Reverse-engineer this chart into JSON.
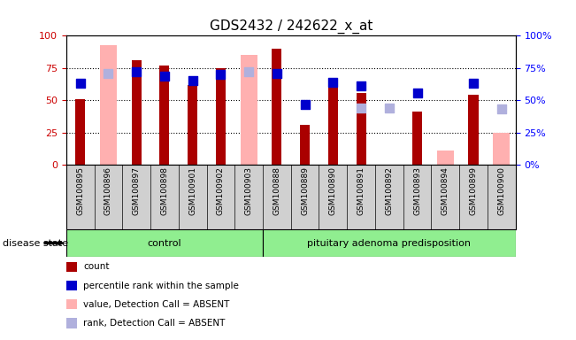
{
  "title": "GDS2432 / 242622_x_at",
  "samples": [
    "GSM100895",
    "GSM100896",
    "GSM100897",
    "GSM100898",
    "GSM100901",
    "GSM100902",
    "GSM100903",
    "GSM100888",
    "GSM100889",
    "GSM100890",
    "GSM100891",
    "GSM100892",
    "GSM100893",
    "GSM100894",
    "GSM100899",
    "GSM100900"
  ],
  "groups": [
    {
      "label": "control",
      "start": 0,
      "end": 7
    },
    {
      "label": "pituitary adenoma predisposition",
      "start": 7,
      "end": 16
    }
  ],
  "count": [
    51,
    null,
    81,
    77,
    62,
    75,
    null,
    90,
    31,
    60,
    56,
    null,
    41,
    null,
    54,
    null
  ],
  "percentile_rank": [
    63,
    null,
    72,
    69,
    65,
    70,
    null,
    71,
    47,
    64,
    61,
    null,
    56,
    null,
    63,
    null
  ],
  "value_absent": [
    null,
    93,
    null,
    null,
    null,
    null,
    85,
    null,
    null,
    null,
    null,
    null,
    null,
    11,
    null,
    25
  ],
  "rank_absent": [
    null,
    71,
    null,
    null,
    null,
    null,
    72,
    null,
    null,
    null,
    44,
    44,
    null,
    null,
    null,
    43
  ],
  "ylim": [
    0,
    100
  ],
  "yticks": [
    0,
    25,
    50,
    75,
    100
  ],
  "grid_lines": [
    25,
    50,
    75
  ],
  "bar_color": "#aa0000",
  "absent_bar_color": "#ffb0b0",
  "blue_dot_color": "#0000cc",
  "absent_rank_color": "#b0b0dd",
  "title_fontsize": 11,
  "legend_items": [
    {
      "label": "count",
      "color": "#aa0000"
    },
    {
      "label": "percentile rank within the sample",
      "color": "#0000cc"
    },
    {
      "label": "value, Detection Call = ABSENT",
      "color": "#ffb0b0"
    },
    {
      "label": "rank, Detection Call = ABSENT",
      "color": "#b0b0dd"
    }
  ],
  "disease_state_label": "disease state",
  "group_color": "#90ee90",
  "xlabel_bg": "#d0d0d0",
  "bar_width": 0.35,
  "absent_bar_width": 0.6,
  "dot_size": 50
}
